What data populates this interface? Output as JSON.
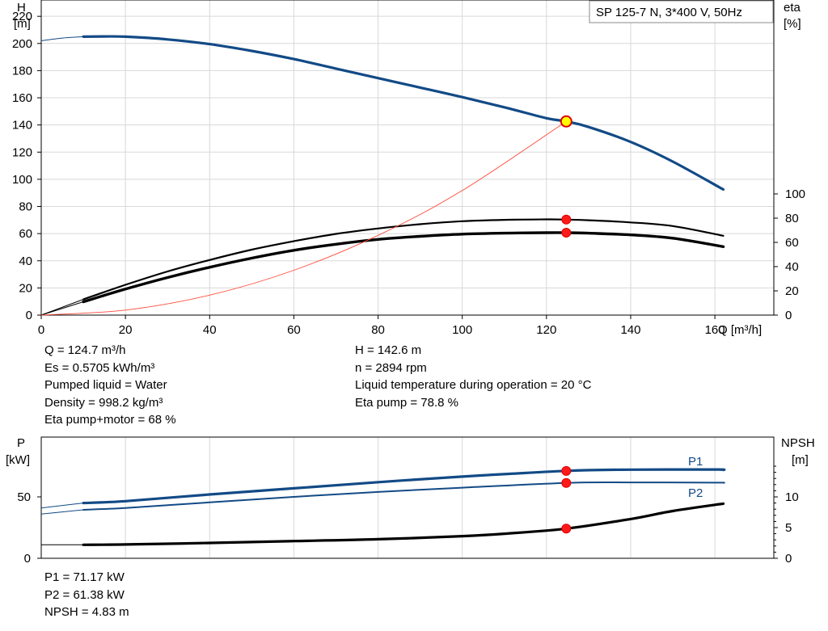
{
  "chart_data": [
    {
      "type": "line",
      "title": "SP 125-7 N, 3*400 V, 50Hz",
      "xlabel": "Q [m³/h]",
      "ylabel_left": [
        "H",
        "[m]"
      ],
      "ylabel_right": [
        "eta",
        "[%]"
      ],
      "xlim": [
        0,
        174
      ],
      "ylim_left": [
        0,
        232
      ],
      "ylim_right_ticks": [
        0,
        100
      ],
      "x_ticks": [
        "0",
        "20",
        "40",
        "60",
        "80",
        "100",
        "120",
        "140",
        "160"
      ],
      "y_ticks_left": [
        "0",
        "20",
        "40",
        "60",
        "80",
        "100",
        "120",
        "140",
        "160",
        "180",
        "200",
        "220"
      ],
      "y_ticks_right": [
        "0",
        "20",
        "40",
        "60",
        "80",
        "100"
      ],
      "grid": true,
      "series": [
        {
          "key": "H",
          "color": "#124a86",
          "x": [
            0,
            5,
            10,
            15,
            20,
            30,
            40,
            50,
            60,
            70,
            80,
            90,
            100,
            110,
            120,
            124.7,
            130,
            140,
            150,
            162
          ],
          "y": [
            202,
            204,
            205,
            205.2,
            205,
            203,
            199.5,
            194.5,
            188.5,
            181.5,
            174.5,
            167.5,
            160.5,
            153,
            145,
            142.6,
            138.5,
            127.5,
            113,
            92.5
          ]
        },
        {
          "key": "eta_pump",
          "color": "#000000",
          "x": [
            0,
            10,
            20,
            30,
            40,
            50,
            60,
            70,
            80,
            90,
            100,
            110,
            120,
            124.7,
            130,
            140,
            150,
            162
          ],
          "y": [
            0,
            13,
            25,
            36,
            45.5,
            54,
            61,
            67,
            71.5,
            75,
            77.5,
            78.6,
            79,
            78.8,
            78.3,
            76.5,
            73.5,
            65.5
          ]
        },
        {
          "key": "eta_pump_motor",
          "color": "#000000",
          "x": [
            0,
            10,
            20,
            30,
            40,
            50,
            60,
            70,
            80,
            90,
            100,
            110,
            120,
            124.7,
            130,
            140,
            150,
            162
          ],
          "y": [
            0,
            11,
            21.5,
            31,
            39.5,
            47,
            53.5,
            58.5,
            62.5,
            65,
            66.8,
            67.6,
            68,
            68,
            67.6,
            66.2,
            63.5,
            56.5
          ]
        },
        {
          "key": "system_curve",
          "color": "#ff4a3a",
          "x": [
            0,
            20,
            40,
            60,
            80,
            100,
            124.7
          ],
          "y": [
            0,
            3.7,
            14.7,
            33,
            58.7,
            91.7,
            142.6
          ]
        }
      ],
      "operating_points": [
        {
          "x": 124.7,
          "y": 142.6,
          "axis": "H",
          "style": "yellow"
        },
        {
          "x": 124.7,
          "y": 78.8,
          "axis": "eta",
          "style": "red"
        },
        {
          "x": 124.7,
          "y": 68,
          "axis": "eta",
          "style": "red"
        }
      ]
    },
    {
      "type": "line",
      "xlim": [
        0,
        174
      ],
      "ylabel_left": [
        "P",
        "[kW]"
      ],
      "ylabel_right": [
        "NPSH",
        "[m]"
      ],
      "y_ticks_left": [
        "0",
        "50"
      ],
      "y_ticks_right": [
        "0",
        "5",
        "10"
      ],
      "grid": true,
      "series": [
        {
          "key": "P1",
          "name": "P1",
          "color": "#124a86",
          "x": [
            0,
            10,
            20,
            40,
            60,
            80,
            100,
            124.7,
            140,
            160,
            162
          ],
          "y": [
            41,
            45,
            46.5,
            52,
            57,
            62,
            66.5,
            71.17,
            72.2,
            72.3,
            72
          ]
        },
        {
          "key": "P2",
          "name": "P2",
          "color": "#124a86",
          "x": [
            0,
            10,
            20,
            40,
            60,
            80,
            100,
            124.7,
            140,
            160,
            162
          ],
          "y": [
            36,
            39.5,
            41,
            45.5,
            50,
            54,
            57.5,
            61.38,
            61.8,
            61.6,
            61.5
          ]
        },
        {
          "key": "NPSH",
          "color": "#000000",
          "x": [
            0,
            10,
            20,
            40,
            60,
            80,
            100,
            110,
            124.7,
            140,
            150,
            162
          ],
          "y": [
            2.2,
            2.2,
            2.25,
            2.5,
            2.8,
            3.1,
            3.6,
            4,
            4.83,
            6.4,
            7.7,
            8.9
          ]
        }
      ],
      "operating_points": [
        {
          "x": 124.7,
          "y": 71.17,
          "axis": "P"
        },
        {
          "x": 124.7,
          "y": 61.38,
          "axis": "P"
        },
        {
          "x": 124.7,
          "y": 4.83,
          "axis": "NPSH"
        }
      ]
    }
  ],
  "readout_left": [
    "Q = 124.7 m³/h",
    "Es = 0.5705 kWh/m³",
    "Pumped liquid = Water",
    "Density = 998.2 kg/m³",
    "Eta pump+motor = 68 %"
  ],
  "readout_right": [
    "H = 142.6 m",
    "n = 2894 rpm",
    "Liquid temperature during operation = 20 °C",
    "Eta pump = 78.8 %"
  ],
  "readout_bottom": [
    "P1 = 71.17 kW",
    "P2 = 61.38 kW",
    "NPSH = 4.83 m"
  ]
}
